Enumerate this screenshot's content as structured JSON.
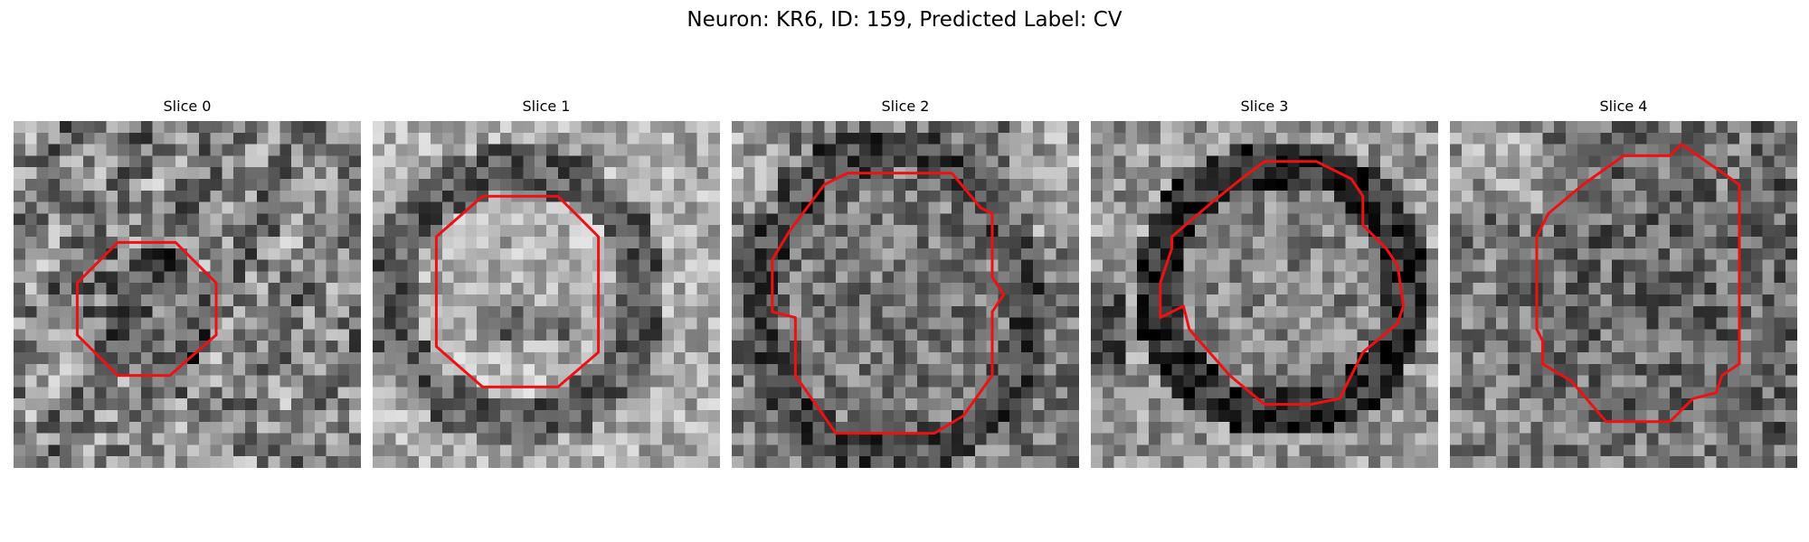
{
  "figure": {
    "suptitle": "Neuron: KR6, ID: 159, Predicted Label: CV",
    "contour_color": "#ee1111"
  },
  "panels": [
    {
      "title": "Slice 0"
    },
    {
      "title": "Slice 1"
    },
    {
      "title": "Slice 2"
    },
    {
      "title": "Slice 3"
    },
    {
      "title": "Slice 4"
    }
  ]
}
